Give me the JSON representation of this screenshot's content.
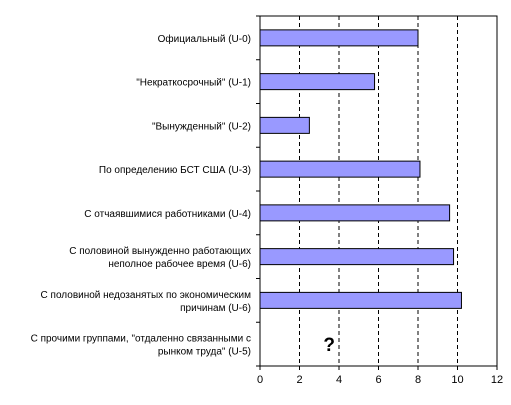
{
  "chart_data": {
    "type": "bar",
    "orientation": "horizontal",
    "categories": [
      [
        "Официальный (U-0)"
      ],
      [
        "\"Некраткосрочный\" (U-1)"
      ],
      [
        "\"Вынужденный\" (U-2)"
      ],
      [
        "По определению БСТ США (U-3)"
      ],
      [
        "С отчаявшимися работниками (U-4)"
      ],
      [
        "С половиной вынужденно работающих",
        "неполное рабочее время (U-6)"
      ],
      [
        "С половиной недозанятых по экономическим",
        "причинам (U-6)"
      ],
      [
        "С прочими группами, \"отдаленно связанными с",
        "рынком труда\" (U-5)"
      ]
    ],
    "values": [
      8.0,
      5.8,
      2.5,
      8.1,
      9.6,
      9.8,
      10.2,
      null
    ],
    "missing_marker": "?",
    "missing_marker_value": 3.5,
    "xlim": [
      0,
      12
    ],
    "xticks": [
      0,
      2,
      4,
      6,
      8,
      10,
      12
    ],
    "grid": "vertical-dashed",
    "title": "",
    "xlabel": "",
    "ylabel": "",
    "colors": {
      "bar_fill": "#9999ff",
      "bar_stroke": "#000000",
      "axis": "#000000",
      "grid": "#000000"
    }
  }
}
